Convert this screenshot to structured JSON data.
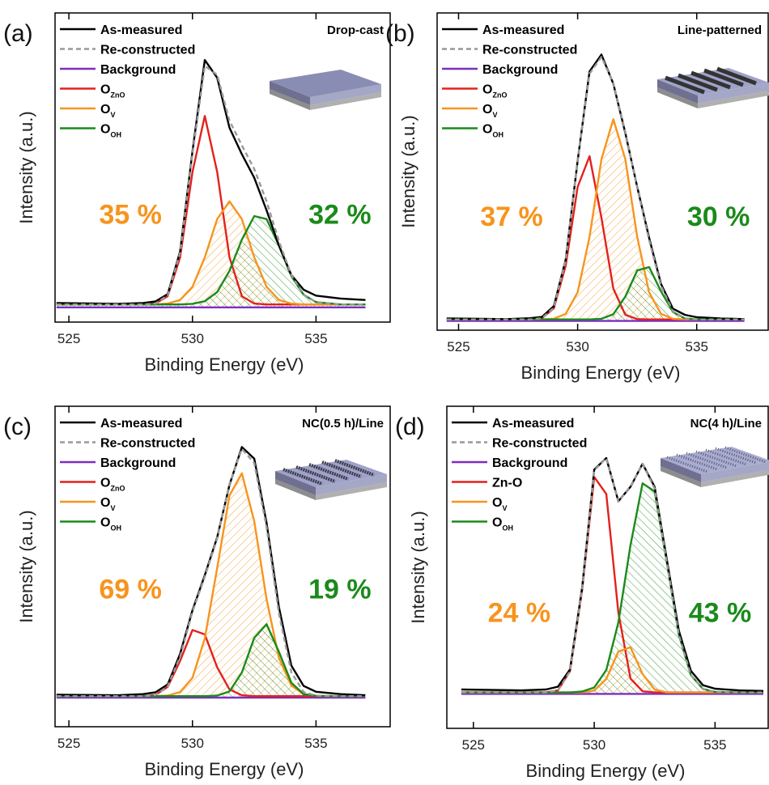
{
  "chart_data": [
    {
      "type": "line",
      "label": "(a)",
      "title": "Drop-cast",
      "x_label": "Binding Energy (eV)",
      "y_label": "Intensity (a.u.)",
      "legend": "upper left",
      "x": [
        524.5,
        527,
        528,
        528.5,
        529,
        529.5,
        530,
        530.5,
        531,
        531.5,
        532,
        532.5,
        533,
        533.5,
        534,
        534.5,
        535,
        536,
        537
      ],
      "xlim": [
        524.44,
        538
      ],
      "xticks": [
        525,
        530,
        535
      ],
      "ylim": [
        -5,
        100
      ],
      "series": [
        {
          "name": "As-measured",
          "color": "#000000",
          "values": [
            1.5,
            1.2,
            1.5,
            2,
            4.5,
            19,
            53,
            84,
            78,
            61,
            52,
            44,
            33,
            21,
            11,
            6,
            4,
            3,
            2.5
          ]
        },
        {
          "name": "Re-constructed",
          "color": "#999999",
          "dashed": true,
          "values": [
            1,
            1,
            1,
            1.3,
            4.1,
            18.5,
            52.2,
            82,
            79,
            63.4,
            55,
            47,
            36,
            22.5,
            11,
            4.3,
            1.8,
            1,
            1
          ]
        },
        {
          "name": "Background",
          "color": "#7b2fc0",
          "values": [
            0,
            0,
            0,
            0,
            0,
            0,
            0,
            0,
            0,
            0,
            0,
            0,
            0,
            0,
            0,
            0,
            0,
            0,
            0
          ]
        },
        {
          "name": "O",
          "subscript": "ZnO",
          "color": "#e3211c",
          "values": [
            1,
            1,
            1,
            1.3,
            3.8,
            17,
            46,
            65,
            46,
            17,
            3.8,
            1.3,
            1,
            1,
            1,
            1,
            1,
            1,
            1
          ]
        },
        {
          "name": "O",
          "subscript": "V",
          "color": "#f7941d",
          "hatched": true,
          "values": [
            1,
            1,
            1,
            1,
            1.3,
            2.5,
            7,
            17,
            30,
            36,
            30,
            17,
            7,
            2.5,
            1.3,
            1,
            1,
            1,
            1
          ]
        },
        {
          "name": "O",
          "subscript": "OH",
          "color": "#1b8a1b",
          "hatched": true,
          "values": [
            1,
            1,
            1,
            1,
            1,
            1,
            1.2,
            2.1,
            5.2,
            12.4,
            23,
            31,
            30,
            21,
            10.6,
            4.3,
            1.8,
            1,
            1
          ]
        }
      ],
      "annotations": [
        {
          "text": "35 %",
          "color": "#f7941d"
        },
        {
          "text": "32 %",
          "color": "#1b8a1b"
        }
      ]
    },
    {
      "type": "line",
      "label": "(b)",
      "title": "Line-patterned",
      "x_label": "Binding Energy (eV)",
      "y_label": "Intensity (a.u.)",
      "legend": "upper left",
      "x": [
        524.5,
        527,
        528,
        528.5,
        529,
        529.5,
        530,
        530.5,
        531,
        531.5,
        532,
        532.5,
        533,
        533.5,
        534,
        534.5,
        535,
        536,
        537
      ],
      "xlim": [
        524.1,
        538
      ],
      "xticks": [
        525,
        530,
        535
      ],
      "ylim": [
        -3,
        100
      ],
      "series": [
        {
          "name": "As-measured",
          "color": "#000000",
          "values": [
            0.8,
            0.6,
            0.9,
            1.3,
            4.8,
            20,
            52,
            81,
            86.5,
            77,
            61,
            43.5,
            27,
            12,
            4,
            2,
            1.2,
            0.8,
            0.6
          ]
        },
        {
          "name": "Re-constructed",
          "color": "#999999",
          "dashed": true,
          "values": [
            0.5,
            0.5,
            0.5,
            0.9,
            4.3,
            19.8,
            52.3,
            80.3,
            85.7,
            77.2,
            61.4,
            43.3,
            26.3,
            11.4,
            3.1,
            0.8,
            0.5,
            0.5,
            0.5
          ]
        },
        {
          "name": "Background",
          "color": "#7b2fc0",
          "values": [
            0,
            0,
            0,
            0,
            0,
            0,
            0,
            0,
            0,
            0,
            0,
            0,
            0,
            0,
            0,
            0,
            0,
            0,
            0
          ]
        },
        {
          "name": "O",
          "subscript": "ZnO",
          "color": "#e3211c",
          "values": [
            0.5,
            0.5,
            0.5,
            0.9,
            4.1,
            18,
            43.5,
            53.5,
            33.5,
            10.5,
            2,
            0.6,
            0.5,
            0.5,
            0.5,
            0.5,
            0.5,
            0.5,
            0.5
          ]
        },
        {
          "name": "O",
          "subscript": "V",
          "color": "#f7941d",
          "hatched": true,
          "values": [
            0.5,
            0.5,
            0.5,
            0.5,
            0.7,
            2.3,
            9.3,
            27.3,
            52.5,
            65.5,
            52.5,
            27.3,
            9.3,
            2.3,
            0.7,
            0.5,
            0.5,
            0.5,
            0.5
          ]
        },
        {
          "name": "O",
          "subscript": "OH",
          "color": "#1b8a1b",
          "hatched": true,
          "values": [
            0.5,
            0.5,
            0.5,
            0.5,
            0.5,
            0.5,
            0.5,
            0.5,
            0.7,
            2.2,
            7.9,
            16.4,
            17.5,
            9.6,
            2.9,
            0.8,
            0.5,
            0.5,
            0.5
          ]
        }
      ],
      "annotations": [
        {
          "text": "37 %",
          "color": "#f7941d"
        },
        {
          "text": "30 %",
          "color": "#1b8a1b"
        }
      ]
    },
    {
      "type": "line",
      "label": "(c)",
      "title": "NC(0.5 h)/Line",
      "x_label": "Binding Energy (eV)",
      "y_label": "Intensity (a.u.)",
      "legend": "upper left",
      "x": [
        524.5,
        527,
        528,
        528.5,
        529,
        529.5,
        530,
        530.5,
        531,
        531.5,
        532,
        532.5,
        533,
        533.5,
        534,
        534.5,
        535,
        536,
        537
      ],
      "xlim": [
        524.44,
        538
      ],
      "xticks": [
        525,
        530,
        535
      ],
      "ylim": [
        -10,
        100
      ],
      "series": [
        {
          "name": "As-measured",
          "color": "#000000",
          "values": [
            1,
            0.8,
            1.2,
            1.8,
            4.5,
            15,
            30,
            42,
            55,
            73,
            86,
            82,
            60,
            31,
            11,
            4,
            2,
            1.2,
            0.8
          ]
        },
        {
          "name": "Re-constructed",
          "color": "#999999",
          "dashed": true,
          "values": [
            0.5,
            0.5,
            0.5,
            0.9,
            3.9,
            14,
            29.5,
            41.5,
            54.6,
            73.3,
            85.4,
            80.5,
            58.5,
            28.8,
            8.7,
            1.9,
            0.7,
            0.5,
            0.5
          ]
        },
        {
          "name": "Background",
          "color": "#7b2fc0",
          "values": [
            0,
            0,
            0,
            0,
            0,
            0,
            0,
            0,
            0,
            0,
            0,
            0,
            0,
            0,
            0,
            0,
            0,
            0,
            0
          ]
        },
        {
          "name": "O",
          "subscript": "ZnO",
          "color": "#e3211c",
          "values": [
            0.5,
            0.5,
            0.5,
            0.9,
            3.7,
            12.6,
            23.2,
            21.7,
            10.4,
            2.8,
            0.8,
            0.5,
            0.5,
            0.5,
            0.5,
            0.5,
            0.5,
            0.5,
            0.5
          ]
        },
        {
          "name": "O",
          "subscript": "V",
          "color": "#f7941d",
          "hatched": true,
          "values": [
            0.5,
            0.5,
            0.5,
            0.5,
            0.7,
            1.9,
            6.8,
            20.3,
            44.5,
            69.4,
            77,
            60.5,
            33.8,
            13.6,
            4.1,
            1.2,
            0.6,
            0.5,
            0.5
          ]
        },
        {
          "name": "O",
          "subscript": "OH",
          "color": "#1b8a1b",
          "hatched": true,
          "values": [
            0.5,
            0.5,
            0.5,
            0.5,
            0.5,
            0.5,
            0.5,
            0.5,
            0.7,
            2.1,
            8.6,
            20.5,
            25.2,
            15.7,
            5.1,
            1.2,
            0.6,
            0.5,
            0.5
          ]
        }
      ],
      "annotations": [
        {
          "text": "69 %",
          "color": "#f7941d"
        },
        {
          "text": "19 %",
          "color": "#1b8a1b"
        }
      ]
    },
    {
      "type": "line",
      "label": "(d)",
      "title": "NC(4 h)/Line",
      "x_label": "Binding Energy (eV)",
      "y_label": "Intensity (a.u.)",
      "legend": "upper left",
      "x": [
        524.5,
        527,
        528,
        528.5,
        529,
        529.5,
        530,
        530.5,
        531,
        531.5,
        532,
        532.5,
        533,
        533.5,
        534,
        534.5,
        535,
        536,
        537
      ],
      "xlim": [
        523.9,
        537.2
      ],
      "xticks": [
        525,
        530,
        535
      ],
      "ylim": [
        -12,
        100
      ],
      "series": [
        {
          "name": "As-measured",
          "color": "#000000",
          "values": [
            1.5,
            1.2,
            1.5,
            2.5,
            8.5,
            37,
            78,
            82,
            67,
            72,
            80,
            72,
            47,
            22,
            8,
            3,
            1.8,
            1.2,
            1
          ]
        },
        {
          "name": "Re-constructed",
          "color": "#999999",
          "dashed": true,
          "values": [
            0.5,
            0.5,
            0.5,
            1.2,
            7.9,
            36.4,
            77.7,
            82,
            66.8,
            72.2,
            80,
            71.4,
            46,
            20.5,
            6.5,
            1.7,
            0.7,
            0.5,
            0.5
          ]
        },
        {
          "name": "Background",
          "color": "#7b2fc0",
          "values": [
            0,
            0,
            0,
            0,
            0,
            0,
            0,
            0,
            0,
            0,
            0,
            0,
            0,
            0,
            0,
            0,
            0,
            0,
            0
          ]
        },
        {
          "name": "Zn-O",
          "color": "#e3211c",
          "values": [
            0.5,
            0.5,
            0.5,
            1.2,
            7.9,
            36.1,
            75.4,
            69.5,
            28.3,
            5.3,
            0.9,
            0.5,
            0.5,
            0.5,
            0.5,
            0.5,
            0.5,
            0.5,
            0.5
          ]
        },
        {
          "name": "O",
          "subscript": "V",
          "color": "#f7941d",
          "hatched": true,
          "values": [
            0.5,
            0.5,
            0.5,
            0.5,
            0.5,
            0.5,
            1.1,
            5.2,
            14.7,
            16.2,
            6.9,
            1.5,
            0.5,
            0.5,
            0.5,
            0.5,
            0.5,
            0.5,
            0.5
          ]
        },
        {
          "name": "O",
          "subscript": "OH",
          "color": "#1b8a1b",
          "hatched": true,
          "values": [
            0.5,
            0.5,
            0.5,
            0.5,
            0.5,
            0.8,
            2.2,
            8.3,
            24.8,
            51.7,
            73.2,
            70.4,
            46,
            20.5,
            6.5,
            1.7,
            0.7,
            0.5,
            0.5
          ]
        }
      ],
      "annotations": [
        {
          "text": "24 %",
          "color": "#f7941d"
        },
        {
          "text": "43 %",
          "color": "#1b8a1b"
        }
      ]
    }
  ]
}
